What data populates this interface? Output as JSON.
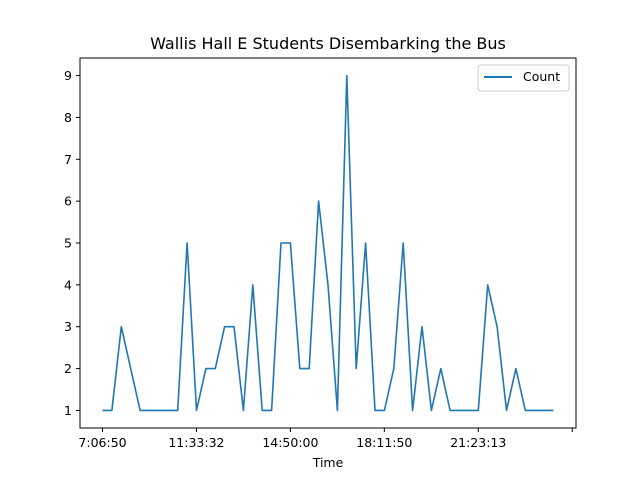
{
  "chart_data": {
    "type": "line",
    "title": "Wallis Hall E Students Disembarking the Bus",
    "xlabel": "Time",
    "ylabel": "",
    "x_tick_labels": [
      "7:06:50",
      "11:33:32",
      "14:50:00",
      "18:11:50",
      "21:23:13",
      ""
    ],
    "ylim": [
      0.58,
      9.42
    ],
    "y_ticks": [
      1,
      2,
      3,
      4,
      5,
      6,
      7,
      8,
      9
    ],
    "grid": false,
    "legend_position": "top-right",
    "series": [
      {
        "name": "Count",
        "color": "#1f77b4",
        "values": [
          1,
          1,
          3,
          2,
          1,
          1,
          1,
          1,
          1,
          5,
          1,
          2,
          2,
          3,
          3,
          1,
          4,
          1,
          1,
          5,
          5,
          2,
          2,
          6,
          4,
          1,
          9,
          2,
          5,
          1,
          1,
          2,
          5,
          1,
          3,
          1,
          2,
          1,
          1,
          1,
          1,
          4,
          3,
          1,
          2,
          1,
          1,
          1,
          1
        ]
      }
    ]
  }
}
